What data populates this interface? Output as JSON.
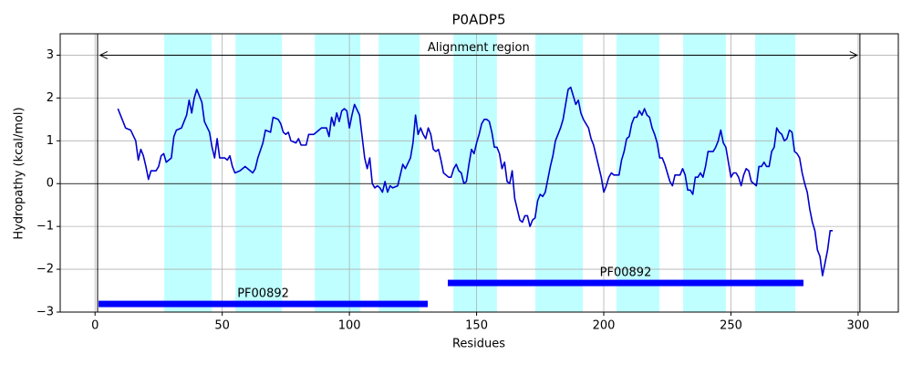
{
  "chart_data": {
    "type": "line",
    "title": "P0ADP5",
    "x_label": "Residues",
    "y_label": "Hydropathy (kcal/mol)",
    "color": "#0000cd",
    "x": [
      9,
      12,
      14,
      16,
      17,
      18,
      19,
      20,
      21,
      22,
      24,
      25,
      26,
      27,
      28,
      30,
      31,
      32,
      34,
      36,
      37,
      38,
      39,
      40,
      42,
      43,
      45,
      46,
      47,
      48,
      49,
      51,
      52,
      53,
      54,
      55,
      57,
      59,
      61,
      62,
      63,
      64,
      66,
      67,
      69,
      70,
      72,
      73,
      74,
      75,
      76,
      77,
      79,
      80,
      81,
      83,
      84,
      86,
      88,
      89,
      91,
      92,
      93,
      94,
      95,
      96,
      97,
      98,
      99,
      100,
      101,
      102,
      104,
      105,
      106,
      107,
      108,
      109,
      110,
      111,
      112,
      113,
      114,
      115,
      116,
      117,
      119,
      120,
      121,
      122,
      124,
      125,
      126,
      127,
      128,
      129,
      130,
      131,
      132,
      133,
      134,
      135,
      136,
      137,
      139,
      140,
      141,
      142,
      143,
      144,
      145,
      146,
      147,
      148,
      149,
      150,
      151,
      152,
      153,
      154,
      155,
      156,
      157,
      158,
      159,
      160,
      161,
      162,
      163,
      164,
      165,
      166,
      167,
      168,
      169,
      170,
      171,
      172,
      173,
      174,
      175,
      176,
      177,
      178,
      179,
      180,
      181,
      182,
      183,
      184,
      185,
      186,
      187,
      188,
      189,
      190,
      191,
      192,
      193,
      194,
      195,
      196,
      197,
      198,
      199,
      200,
      201,
      202,
      203,
      204,
      206,
      207,
      208,
      209,
      210,
      211,
      212,
      213,
      214,
      215,
      216,
      217,
      218,
      219,
      220,
      221,
      222,
      223,
      224,
      225,
      226,
      227,
      228,
      230,
      231,
      232,
      233,
      234,
      235,
      236,
      237,
      238,
      239,
      240,
      241,
      243,
      244,
      245,
      246,
      247,
      248,
      249,
      250,
      251,
      252,
      253,
      254,
      255,
      256,
      257,
      258,
      259,
      260,
      261,
      262,
      263,
      264,
      265,
      266,
      267,
      268,
      269,
      270,
      271,
      272,
      273,
      274,
      275,
      276,
      277,
      278,
      279,
      280,
      281,
      282,
      283,
      284,
      285,
      286,
      287,
      288,
      289,
      290
    ],
    "values": [
      1.75,
      1.3,
      1.25,
      1.0,
      0.55,
      0.8,
      0.65,
      0.4,
      0.1,
      0.3,
      0.3,
      0.4,
      0.65,
      0.7,
      0.5,
      0.6,
      1.1,
      1.25,
      1.3,
      1.6,
      1.95,
      1.65,
      2.0,
      2.2,
      1.9,
      1.45,
      1.2,
      0.85,
      0.6,
      1.05,
      0.6,
      0.6,
      0.55,
      0.65,
      0.4,
      0.25,
      0.3,
      0.4,
      0.3,
      0.25,
      0.35,
      0.6,
      0.95,
      1.25,
      1.2,
      1.55,
      1.5,
      1.4,
      1.2,
      1.15,
      1.2,
      1.0,
      0.95,
      1.05,
      0.9,
      0.9,
      1.15,
      1.15,
      1.25,
      1.3,
      1.3,
      1.1,
      1.55,
      1.35,
      1.65,
      1.45,
      1.7,
      1.75,
      1.7,
      1.3,
      1.6,
      1.85,
      1.6,
      1.1,
      0.6,
      0.35,
      0.6,
      0.0,
      -0.1,
      -0.05,
      -0.1,
      -0.2,
      0.05,
      -0.2,
      -0.05,
      -0.1,
      -0.05,
      0.2,
      0.45,
      0.35,
      0.6,
      0.95,
      1.6,
      1.15,
      1.3,
      1.15,
      1.05,
      1.3,
      1.15,
      0.8,
      0.75,
      0.8,
      0.55,
      0.25,
      0.15,
      0.15,
      0.35,
      0.45,
      0.3,
      0.25,
      0.0,
      0.05,
      0.45,
      0.8,
      0.7,
      0.95,
      1.15,
      1.4,
      1.5,
      1.5,
      1.45,
      1.2,
      0.85,
      0.85,
      0.7,
      0.35,
      0.5,
      0.05,
      0.0,
      0.3,
      -0.35,
      -0.6,
      -0.85,
      -0.9,
      -0.75,
      -0.75,
      -1.0,
      -0.85,
      -0.8,
      -0.4,
      -0.25,
      -0.3,
      -0.2,
      0.1,
      0.4,
      0.65,
      1.0,
      1.15,
      1.3,
      1.5,
      1.85,
      2.2,
      2.25,
      2.05,
      1.85,
      1.95,
      1.65,
      1.5,
      1.4,
      1.3,
      1.05,
      0.9,
      0.65,
      0.4,
      0.15,
      -0.2,
      -0.05,
      0.15,
      0.25,
      0.2,
      0.2,
      0.55,
      0.75,
      1.05,
      1.1,
      1.4,
      1.55,
      1.55,
      1.7,
      1.6,
      1.75,
      1.6,
      1.55,
      1.3,
      1.15,
      0.95,
      0.6,
      0.6,
      0.45,
      0.25,
      0.05,
      -0.05,
      0.2,
      0.2,
      0.35,
      0.2,
      -0.15,
      -0.15,
      -0.25,
      0.15,
      0.15,
      0.25,
      0.15,
      0.4,
      0.75,
      0.75,
      0.85,
      1.0,
      1.25,
      0.95,
      0.85,
      0.5,
      0.15,
      0.25,
      0.25,
      0.15,
      -0.05,
      0.2,
      0.35,
      0.3,
      0.05,
      0.0,
      -0.05,
      0.4,
      0.4,
      0.5,
      0.4,
      0.4,
      0.75,
      0.85,
      1.3,
      1.2,
      1.15,
      1.0,
      1.05,
      1.25,
      1.2,
      0.75,
      0.7,
      0.6,
      0.25,
      0.0,
      -0.2,
      -0.6,
      -0.9,
      -1.1,
      -1.55,
      -1.7,
      -2.15,
      -1.85,
      -1.55,
      -1.1,
      -1.1
    ],
    "xlim": [
      -13.7,
      315.8
    ],
    "ylim": [
      -3,
      3.5
    ],
    "xticks": [
      0,
      50,
      100,
      150,
      200,
      250,
      300
    ],
    "yticks": [
      {
        "value": -3,
        "label": "−3"
      },
      {
        "value": -2,
        "label": "−2"
      },
      {
        "value": -1,
        "label": "−1"
      },
      0,
      1,
      2,
      3
    ],
    "grid": true,
    "hline": 0,
    "region_color": "#00ffff",
    "regions": [
      [
        27.2,
        45.9
      ],
      [
        55.2,
        73.5
      ],
      [
        86.4,
        104.3
      ],
      [
        111.5,
        127.6
      ],
      [
        140.9,
        158
      ],
      [
        173.1,
        191.8
      ],
      [
        205,
        221.9
      ],
      [
        231.2,
        248
      ],
      [
        259.5,
        275.3
      ]
    ],
    "vlines": [
      1,
      300.7
    ],
    "alignment": {
      "label": "Alignment region",
      "start": 2,
      "end": 299.6,
      "y": 3
    },
    "domain_color": "#0000ff",
    "domains": [
      {
        "name": "PF00892",
        "start": 1.4,
        "end": 130.8,
        "y": -2.81
      },
      {
        "name": "PF00892",
        "start": 138.7,
        "end": 278.5,
        "y": -2.32
      }
    ]
  }
}
